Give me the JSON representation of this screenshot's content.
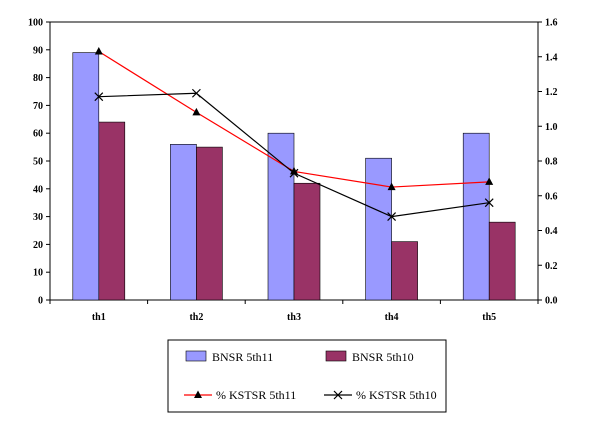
{
  "chart_data": {
    "type": "bar",
    "categories": [
      "th1",
      "th2",
      "th3",
      "th4",
      "th5"
    ],
    "left_axis": {
      "min": 0,
      "max": 100,
      "step": 10
    },
    "right_axis": {
      "min": 0,
      "max": 1.6,
      "step": 0.2
    },
    "series": [
      {
        "name": "BNSR 5th11",
        "type": "bar",
        "axis": "left",
        "color": "#9999ff",
        "values": [
          89,
          56,
          60,
          51,
          60
        ]
      },
      {
        "name": "BNSR 5th10",
        "type": "bar",
        "axis": "left",
        "color": "#993366",
        "values": [
          64,
          55,
          42,
          21,
          28
        ]
      },
      {
        "name": "% KSTSR 5th11",
        "type": "line",
        "axis": "right",
        "color": "#ff0000",
        "marker": "triangle",
        "values": [
          1.43,
          1.08,
          0.74,
          0.65,
          0.68
        ]
      },
      {
        "name": "% KSTSR 5th10",
        "type": "line",
        "axis": "right",
        "color": "#000000",
        "marker": "x",
        "values": [
          1.17,
          1.19,
          0.73,
          0.48,
          0.56
        ]
      }
    ],
    "grid": false,
    "legend_position": "bottom"
  }
}
